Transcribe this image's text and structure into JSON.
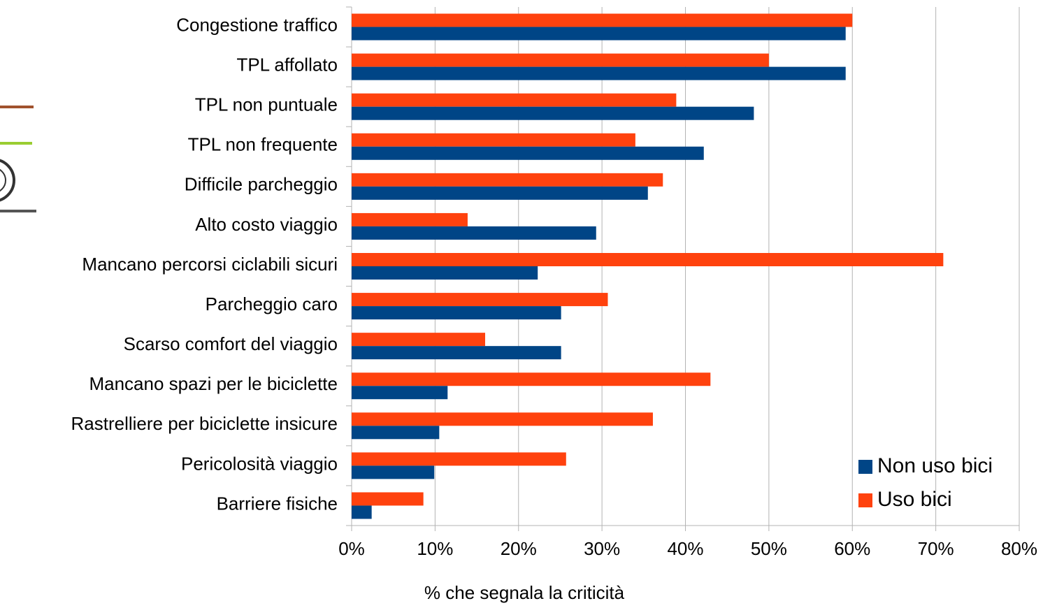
{
  "chart_data": {
    "type": "barh",
    "categories": [
      "Congestione traffico",
      "TPL affollato",
      "TPL non puntuale",
      "TPL non frequente",
      "Difficile parcheggio",
      "Alto costo viaggio",
      "Mancano percorsi ciclabili sicuri",
      "Parcheggio caro",
      "Scarso comfort del viaggio",
      "Mancano spazi per le biciclette",
      "Rastrelliere per biciclette insicure",
      "Pericolosità viaggio",
      "Barriere fisiche"
    ],
    "series": [
      {
        "name": "Non uso bici",
        "color": "#004586",
        "values": [
          59.2,
          59.2,
          48.2,
          42.2,
          35.5,
          29.3,
          22.3,
          25.1,
          25.1,
          11.5,
          10.5,
          9.9,
          2.4
        ]
      },
      {
        "name": "Uso bici",
        "color": "#ff420e",
        "values": [
          60.0,
          50.0,
          38.9,
          34.0,
          37.3,
          13.9,
          70.9,
          30.7,
          16.0,
          43.0,
          36.1,
          25.7,
          8.6
        ]
      }
    ],
    "xlabel": "% che segnala la criticità",
    "xlim": [
      0,
      80
    ],
    "xticks": [
      {
        "value": 0,
        "label": "0%"
      },
      {
        "value": 10,
        "label": "10%"
      },
      {
        "value": 20,
        "label": "20%"
      },
      {
        "value": 30,
        "label": "30%"
      },
      {
        "value": 40,
        "label": "40%"
      },
      {
        "value": 50,
        "label": "50%"
      },
      {
        "value": 60,
        "label": "60%"
      },
      {
        "value": 70,
        "label": "70%"
      },
      {
        "value": 80,
        "label": "80%"
      }
    ],
    "grid": true,
    "legend": "bottom-right"
  }
}
